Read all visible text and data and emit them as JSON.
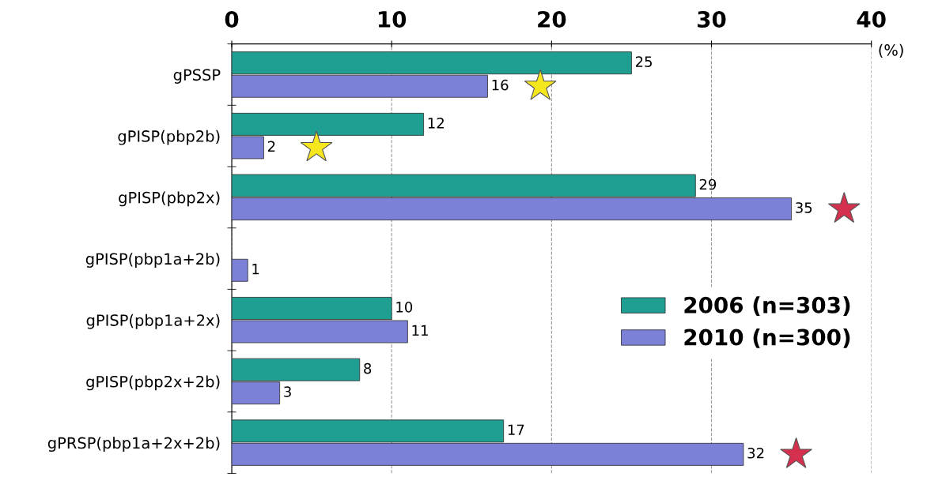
{
  "chart_data": {
    "type": "bar",
    "orientation": "horizontal",
    "xlabel": "(%)",
    "categories": [
      "gPSSP",
      "gPISP(pbp2b)",
      "gPISP(pbp2x)",
      "gPISP(pbp1a+2b)",
      "gPISP(pbp1a+2x)",
      "gPISP(pbp2x+2b)",
      "gPRSP(pbp1a+2x+2b)"
    ],
    "series": [
      {
        "name": "2006 (n=303)",
        "color": "#1f9e92",
        "values": [
          25,
          12,
          29,
          null,
          10,
          8,
          17
        ]
      },
      {
        "name": "2010 (n=300)",
        "color": "#7c80d6",
        "values": [
          16,
          2,
          35,
          1,
          11,
          3,
          32
        ]
      }
    ],
    "xlim": [
      0,
      40
    ],
    "xticks": [
      0,
      10,
      20,
      30,
      40
    ],
    "grid": "x",
    "legend": "right",
    "data_labels": true
  }
}
